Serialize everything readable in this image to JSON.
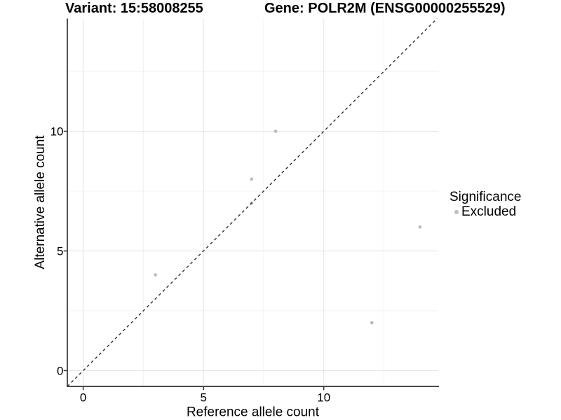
{
  "chart_data": {
    "type": "scatter",
    "title_left": "Variant: 15:58008255",
    "title_right": "Gene: POLR2M (ENSG00000255529)",
    "xlabel": "Reference allele count",
    "ylabel": "Alternative allele count",
    "xlim": [
      -0.66,
      14.76
    ],
    "ylim": [
      -0.66,
      14.71
    ],
    "x_tick_values": [
      0,
      5,
      10
    ],
    "x_tick_labels": [
      "0",
      "5",
      "10"
    ],
    "y_tick_values": [
      0,
      5,
      10
    ],
    "y_tick_labels": [
      "0",
      "5",
      "10"
    ],
    "x_minor_gridlines": [
      2.5,
      7.5,
      12.5
    ],
    "y_minor_gridlines": [
      2.5,
      7.5,
      12.5
    ],
    "grid": "major+minor",
    "series": [
      {
        "name": "Excluded",
        "color": "#bdbdbd",
        "points": [
          [
            3,
            4
          ],
          [
            7,
            7
          ],
          [
            7,
            8
          ],
          [
            8,
            10
          ],
          [
            12,
            2
          ],
          [
            14,
            6
          ]
        ]
      }
    ],
    "reference_line": {
      "type": "identity",
      "style": "dashed",
      "color": "#2e2e2e"
    },
    "legend": {
      "title": "Significance",
      "position": "right",
      "entries": [
        {
          "label": "Excluded",
          "color": "#bdbdbd"
        }
      ]
    }
  },
  "colors": {
    "background": "#ffffff",
    "grid_major": "#e6e6e6",
    "grid_minor": "#efefef",
    "axis_line": "#333333",
    "tick_mark": "#333333",
    "text": "#000000",
    "point": "#bdbdbd"
  }
}
